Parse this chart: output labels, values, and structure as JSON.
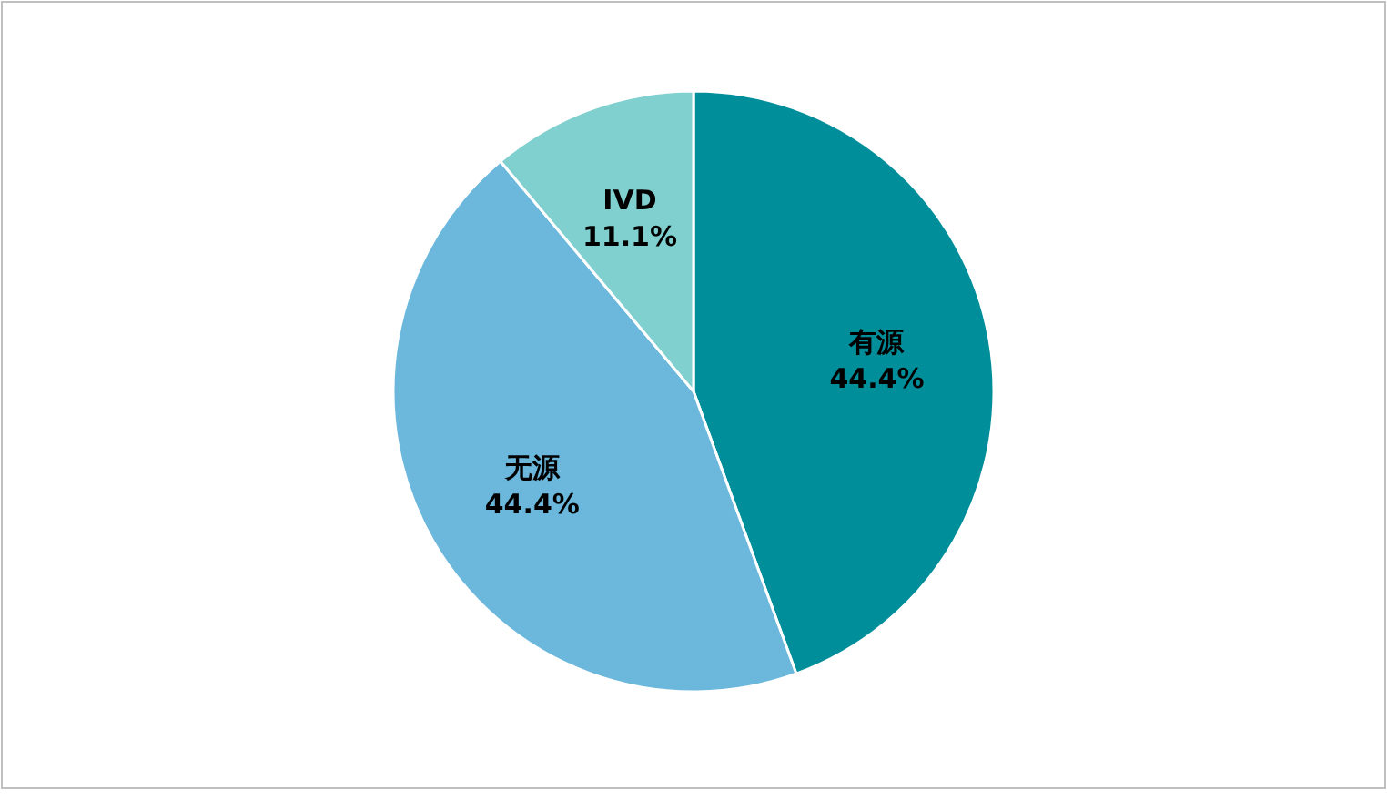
{
  "chart_data": {
    "type": "pie",
    "categories": [
      "有源",
      "无源",
      "IVD"
    ],
    "values": [
      44.4,
      44.4,
      11.1
    ],
    "colors": [
      "#008e9b",
      "#6bb8dc",
      "#80d0cf"
    ],
    "value_labels": [
      "44.4%",
      "44.4%",
      "11.1%"
    ]
  }
}
